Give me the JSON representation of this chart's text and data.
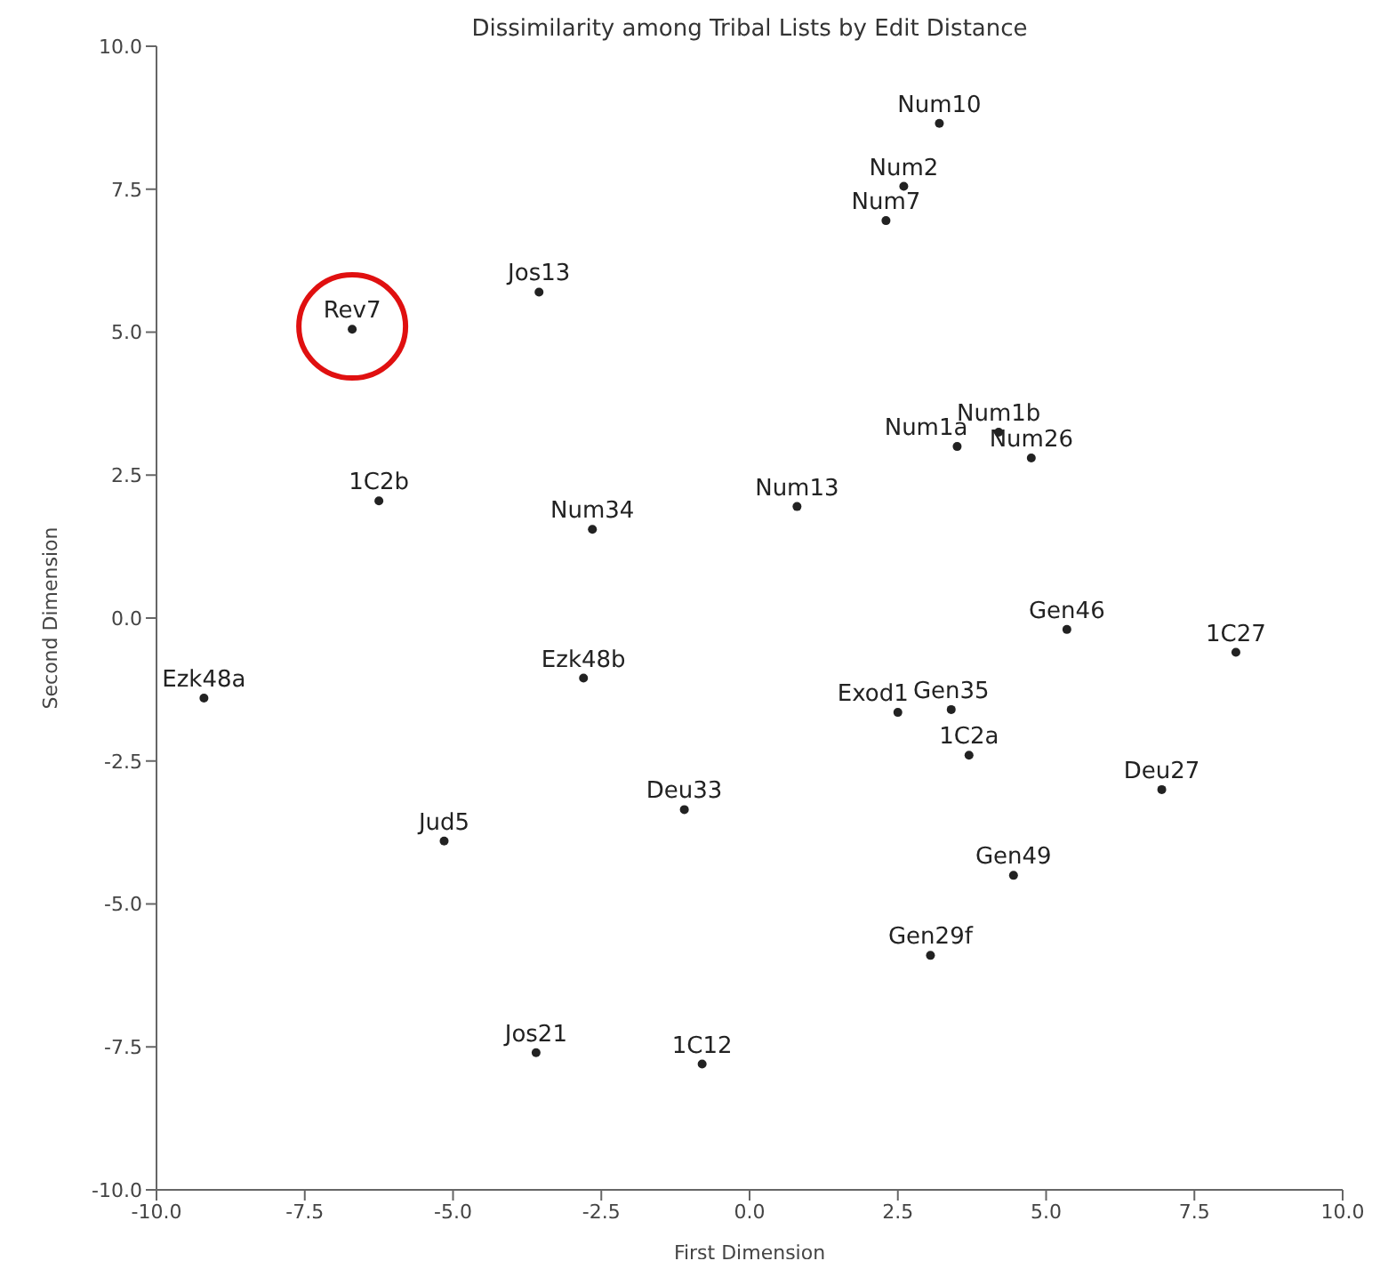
{
  "chart_data": {
    "type": "scatter",
    "title": "Dissimilarity among Tribal Lists by Edit Distance",
    "xlabel": "First Dimension",
    "ylabel": "Second Dimension",
    "xlim": [
      -10,
      10
    ],
    "ylim": [
      -10,
      10
    ],
    "xticks": [
      {
        "value": -10,
        "label": "-10.0"
      },
      {
        "value": -7.5,
        "label": "-7.5"
      },
      {
        "value": -5,
        "label": "-5.0"
      },
      {
        "value": -2.5,
        "label": "-2.5"
      },
      {
        "value": 0,
        "label": "0.0"
      },
      {
        "value": 2.5,
        "label": "2.5"
      },
      {
        "value": 5,
        "label": "5.0"
      },
      {
        "value": 7.5,
        "label": "7.5"
      },
      {
        "value": 10,
        "label": "10.0"
      }
    ],
    "yticks": [
      {
        "value": -10,
        "label": "-10.0"
      },
      {
        "value": -7.5,
        "label": "-7.5"
      },
      {
        "value": -5,
        "label": "-5.0"
      },
      {
        "value": -2.5,
        "label": "-2.5"
      },
      {
        "value": 0,
        "label": "0.0"
      },
      {
        "value": 2.5,
        "label": "2.5"
      },
      {
        "value": 5,
        "label": "5.0"
      },
      {
        "value": 7.5,
        "label": "7.5"
      },
      {
        "value": 10,
        "label": "10.0"
      }
    ],
    "grid": false,
    "legend": false,
    "marker": "circle",
    "series": [
      {
        "color": "#222222",
        "x": [
          3.2,
          2.6,
          2.3,
          -3.55,
          -6.7,
          4.2,
          3.5,
          4.75,
          -6.25,
          -2.65,
          0.8,
          5.35,
          8.2,
          -9.2,
          -2.8,
          2.5,
          3.4,
          3.7,
          6.95,
          -1.1,
          -5.15,
          4.45,
          3.05,
          -3.6,
          -0.8
        ],
        "values": [
          8.65,
          7.55,
          6.95,
          5.7,
          5.05,
          3.25,
          3.0,
          2.8,
          2.05,
          1.55,
          1.95,
          -0.2,
          -0.6,
          -1.4,
          -1.05,
          -1.65,
          -1.6,
          -2.4,
          -3.0,
          -3.35,
          -3.9,
          -4.5,
          -5.9,
          -7.6,
          -7.8
        ],
        "value_labels": [
          "Num10",
          "Num2",
          "Num7",
          "Jos13",
          "Rev7",
          "Num1b",
          "Num1a",
          "Num26",
          "1C2b",
          "Num34",
          "Num13",
          "Gen46",
          "1C27",
          "Ezk48a",
          "Ezk48b",
          "Exod1",
          "Gen35",
          "1C2a",
          "Deu27",
          "Deu33",
          "Jud5",
          "Gen49",
          "Gen29f",
          "Jos21",
          "1C12"
        ]
      }
    ]
  }
}
